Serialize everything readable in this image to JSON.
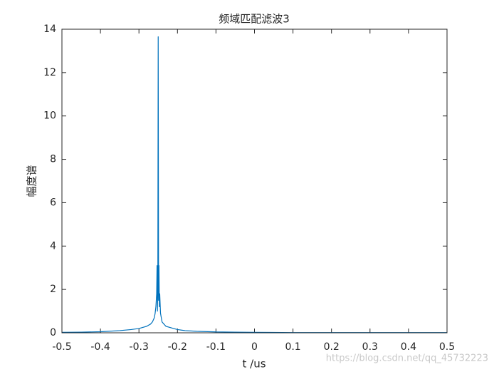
{
  "chart_data": {
    "type": "line",
    "title": "频域匹配滤波3",
    "x_label": "t /us",
    "y_label": "幅度谱",
    "x": [
      -0.5,
      -0.45,
      -0.4,
      -0.35,
      -0.32,
      -0.3,
      -0.29,
      -0.28,
      -0.27,
      -0.265,
      -0.26,
      -0.258,
      -0.256,
      -0.254,
      -0.253,
      -0.252,
      -0.251,
      -0.25,
      -0.249,
      -0.248,
      -0.247,
      -0.246,
      -0.244,
      -0.242,
      -0.24,
      -0.235,
      -0.23,
      -0.22,
      -0.21,
      -0.2,
      -0.18,
      -0.15,
      -0.1,
      -0.05,
      0,
      0.1,
      0.2,
      0.3,
      0.4,
      0.5
    ],
    "series": [
      {
        "color": "#0072BD",
        "values": [
          0.02,
          0.03,
          0.05,
          0.1,
          0.15,
          0.2,
          0.25,
          0.3,
          0.4,
          0.5,
          0.7,
          0.9,
          1.2,
          1.8,
          3.1,
          1.0,
          2.0,
          13.65,
          1.5,
          3.1,
          1.2,
          1.8,
          0.9,
          0.7,
          0.5,
          0.4,
          0.3,
          0.25,
          0.2,
          0.15,
          0.1,
          0.07,
          0.04,
          0.03,
          0.02,
          0.01,
          0.01,
          0.01,
          0.01,
          0.01
        ]
      }
    ],
    "xlim": [
      -0.5,
      0.5
    ],
    "xticks": [
      -0.5,
      -0.4,
      -0.3,
      -0.2,
      -0.1,
      0,
      0.1,
      0.2,
      0.3,
      0.4,
      0.5
    ],
    "ylim": [
      0,
      14
    ],
    "yticks": [
      0,
      2,
      4,
      6,
      8,
      10,
      12,
      14
    ]
  },
  "watermark": "https://blog.csdn.net/qq_45732223"
}
